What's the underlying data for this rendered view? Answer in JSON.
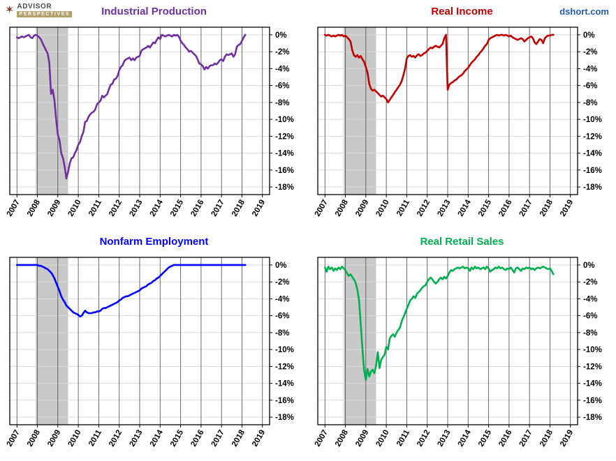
{
  "brand": {
    "line1": "ADVISOR",
    "line2": "PERSPECTIVES",
    "icon": "compass-star-icon"
  },
  "watermark": "dshort.com",
  "style": {
    "recession_fill": "#c9c9c9",
    "vertical_grid_color": "#595959",
    "horizontal_grid_color": "#d9d9d9",
    "border_color": "#000000",
    "watermark_color": "#1f5bb5"
  },
  "chart_data": [
    {
      "type": "line",
      "title": "Industrial Production",
      "color": "#7030A0",
      "x_domain": [
        2006.65,
        2019.35
      ],
      "y_domain": [
        0.9,
        -18.9
      ],
      "x_ticks": [
        2007,
        2008,
        2009,
        2010,
        2011,
        2012,
        2013,
        2014,
        2015,
        2016,
        2017,
        2018,
        2019
      ],
      "x_tick_labels": [
        "2007",
        "2008",
        "2009",
        "2010",
        "2011",
        "2012",
        "2013",
        "2014",
        "2015",
        "2016",
        "2017",
        "2018",
        "2019"
      ],
      "y_ticks": [
        0,
        -2,
        -4,
        -6,
        -8,
        -10,
        -12,
        -14,
        -16,
        -18
      ],
      "y_tick_labels": [
        "0%",
        "-2%",
        "-4%",
        "-6%",
        "-8%",
        "-10%",
        "-12%",
        "-14%",
        "-16%",
        "-18%"
      ],
      "recession": {
        "start": 2007.92,
        "end": 2009.5
      },
      "x_start": 2007.0,
      "x_step_months": 1,
      "values": [
        -0.3,
        -0.4,
        -0.3,
        -0.2,
        -0.3,
        -0.2,
        -0.1,
        0,
        -0.3,
        -0.4,
        -0.1,
        0,
        -0.1,
        -0.3,
        -0.5,
        -1.0,
        -1.4,
        -1.8,
        -2.2,
        -3.3,
        -7.0,
        -6.5,
        -7.8,
        -10.0,
        -11.8,
        -12.5,
        -14.0,
        -14.6,
        -15.6,
        -17.0,
        -16.2,
        -15.2,
        -14.6,
        -14.5,
        -14.0,
        -13.6,
        -13.0,
        -12.7,
        -12.0,
        -11.5,
        -10.3,
        -10.2,
        -9.7,
        -9.4,
        -9.2,
        -9.1,
        -8.8,
        -8.2,
        -8.0,
        -7.8,
        -7.2,
        -7.4,
        -7.2,
        -7.0,
        -6.4,
        -5.9,
        -5.8,
        -5.3,
        -5.2,
        -4.9,
        -4.2,
        -3.8,
        -3.6,
        -3.1,
        -2.9,
        -2.8,
        -2.7,
        -3.0,
        -2.8,
        -3.0,
        -2.7,
        -2.6,
        -2.5,
        -1.9,
        -1.7,
        -1.6,
        -1.5,
        -1.3,
        -1.5,
        -1.2,
        -0.9,
        -1.0,
        -0.6,
        -0.3,
        -0.5,
        0,
        -0.1,
        -0.2,
        -0.1,
        0,
        -0.1,
        -0.2,
        0,
        -0.1,
        0,
        -0.2,
        -0.7,
        -1.0,
        -1.2,
        -1.5,
        -1.7,
        -2.0,
        -1.9,
        -2.1,
        -2.3,
        -2.5,
        -2.9,
        -3.4,
        -3.5,
        -3.7,
        -4.1,
        -3.8,
        -4.0,
        -3.7,
        -3.6,
        -3.6,
        -3.4,
        -3.5,
        -3.3,
        -3.0,
        -2.9,
        -3.1,
        -2.6,
        -2.3,
        -2.4,
        -2.3,
        -2.2,
        -2.6,
        -2.3,
        -1.4,
        -1.2,
        -1.1,
        -0.7,
        -0.3,
        0
      ]
    },
    {
      "type": "line",
      "title": "Real Income",
      "color": "#C00000",
      "x_domain": [
        2006.65,
        2019.35
      ],
      "y_domain": [
        0.9,
        -18.9
      ],
      "x_ticks": [
        2007,
        2008,
        2009,
        2010,
        2011,
        2012,
        2013,
        2014,
        2015,
        2016,
        2017,
        2018,
        2019
      ],
      "x_tick_labels": [
        "2007",
        "2008",
        "2009",
        "2010",
        "2011",
        "2012",
        "2013",
        "2014",
        "2015",
        "2016",
        "2017",
        "2018",
        "2019"
      ],
      "y_ticks": [
        0,
        -2,
        -4,
        -6,
        -8,
        -10,
        -12,
        -14,
        -16,
        -18
      ],
      "y_tick_labels": [
        "0%",
        "-2%",
        "-4%",
        "-6%",
        "-8%",
        "-10%",
        "-12%",
        "-14%",
        "-16%",
        "-18%"
      ],
      "recession": {
        "start": 2007.92,
        "end": 2009.5
      },
      "x_start": 2007.0,
      "x_step_months": 1,
      "values": [
        0,
        -0.1,
        0,
        -0.1,
        -0.2,
        -0.1,
        -0.2,
        -0.1,
        0,
        -0.1,
        0,
        -0.2,
        -0.1,
        -0.3,
        -0.5,
        -0.8,
        -1.8,
        -2.4,
        -2.6,
        -2.4,
        -2.7,
        -2.5,
        -2.9,
        -3.2,
        -3.8,
        -4.5,
        -5.8,
        -6.4,
        -6.6,
        -6.5,
        -6.7,
        -6.9,
        -7.1,
        -7.3,
        -7.2,
        -7.4,
        -7.6,
        -8.0,
        -7.7,
        -7.4,
        -7.1,
        -6.8,
        -6.5,
        -6.2,
        -5.9,
        -5.5,
        -4.8,
        -4.0,
        -2.8,
        -2.5,
        -2.4,
        -2.6,
        -2.5,
        -2.7,
        -2.4,
        -2.3,
        -2.5,
        -2.4,
        -2.2,
        -2.1,
        -1.9,
        -1.7,
        -1.5,
        -1.6,
        -1.4,
        -1.3,
        -1.4,
        -1.5,
        -1.3,
        -1.1,
        -0.4,
        0,
        -6.5,
        -5.9,
        -5.7,
        -5.6,
        -5.4,
        -5.3,
        -5.1,
        -4.9,
        -4.8,
        -4.6,
        -4.3,
        -4.1,
        -3.9,
        -3.6,
        -3.3,
        -3.1,
        -2.9,
        -2.6,
        -2.4,
        -2.1,
        -1.9,
        -1.6,
        -1.3,
        -1.1,
        -0.6,
        -0.4,
        -0.3,
        -0.2,
        -0.1,
        0,
        -0.1,
        0,
        0,
        -0.1,
        0,
        -0.1,
        -0.2,
        -0.1,
        -0.3,
        -0.4,
        -0.5,
        -0.6,
        -0.5,
        -0.4,
        -0.5,
        -0.8,
        -0.6,
        -0.4,
        -0.3,
        -0.2,
        -0.4,
        -0.9,
        -1.1,
        -0.8,
        -0.5,
        -0.6,
        -1.0,
        -0.4,
        -0.2,
        -0.1,
        -0.1,
        0,
        0
      ]
    },
    {
      "type": "line",
      "title": "Nonfarm Employment",
      "color": "#0000FF",
      "x_domain": [
        2006.65,
        2019.35
      ],
      "y_domain": [
        0.9,
        -18.9
      ],
      "x_ticks": [
        2007,
        2008,
        2009,
        2010,
        2011,
        2012,
        2013,
        2014,
        2015,
        2016,
        2017,
        2018,
        2019
      ],
      "x_tick_labels": [
        "2007",
        "2008",
        "2009",
        "2010",
        "2011",
        "2012",
        "2013",
        "2014",
        "2015",
        "2016",
        "2017",
        "2018",
        "2019"
      ],
      "y_ticks": [
        0,
        -2,
        -4,
        -6,
        -8,
        -10,
        -12,
        -14,
        -16,
        -18
      ],
      "y_tick_labels": [
        "0%",
        "-2%",
        "-4%",
        "-6%",
        "-8%",
        "-10%",
        "-12%",
        "-14%",
        "-16%",
        "-18%"
      ],
      "recession": {
        "start": 2007.92,
        "end": 2009.5
      },
      "x_start": 2007.0,
      "x_step_months": 1,
      "values": [
        0,
        0,
        0,
        0,
        0,
        0,
        0,
        0,
        0,
        0,
        0,
        0,
        0,
        -0.1,
        -0.1,
        -0.2,
        -0.3,
        -0.4,
        -0.5,
        -0.7,
        -0.9,
        -1.2,
        -1.6,
        -2.1,
        -2.6,
        -3.1,
        -3.7,
        -4.1,
        -4.4,
        -4.8,
        -5.0,
        -5.2,
        -5.4,
        -5.6,
        -5.7,
        -5.8,
        -5.9,
        -6.1,
        -6.0,
        -5.7,
        -5.4,
        -5.6,
        -5.7,
        -5.7,
        -5.7,
        -5.6,
        -5.6,
        -5.5,
        -5.5,
        -5.4,
        -5.2,
        -5.1,
        -5.1,
        -5.0,
        -4.9,
        -4.8,
        -4.7,
        -4.6,
        -4.5,
        -4.4,
        -4.2,
        -4.1,
        -3.9,
        -3.8,
        -3.7,
        -3.7,
        -3.6,
        -3.5,
        -3.4,
        -3.3,
        -3.2,
        -3.1,
        -3.0,
        -2.8,
        -2.7,
        -2.6,
        -2.5,
        -2.3,
        -2.2,
        -2.1,
        -1.9,
        -1.8,
        -1.6,
        -1.5,
        -1.3,
        -1.1,
        -0.9,
        -0.7,
        -0.5,
        -0.3,
        -0.2,
        -0.1,
        0,
        0,
        0,
        0,
        0,
        0,
        0,
        0,
        0,
        0,
        0,
        0,
        0,
        0,
        0,
        0,
        0,
        0,
        0,
        0,
        0,
        0,
        0,
        0,
        0,
        0,
        0,
        0,
        0,
        0,
        0,
        0,
        0,
        0,
        0,
        0,
        0,
        0,
        0,
        0,
        0,
        0,
        0
      ]
    },
    {
      "type": "line",
      "title": "Real Retail Sales",
      "color": "#00B050",
      "x_domain": [
        2006.65,
        2019.35
      ],
      "y_domain": [
        0.9,
        -18.9
      ],
      "x_ticks": [
        2007,
        2008,
        2009,
        2010,
        2011,
        2012,
        2013,
        2014,
        2015,
        2016,
        2017,
        2018,
        2019
      ],
      "x_tick_labels": [
        "2007",
        "2008",
        "2009",
        "2010",
        "2011",
        "2012",
        "2013",
        "2014",
        "2015",
        "2016",
        "2017",
        "2018",
        "2019"
      ],
      "y_ticks": [
        0,
        -2,
        -4,
        -6,
        -8,
        -10,
        -12,
        -14,
        -16,
        -18
      ],
      "y_tick_labels": [
        "0%",
        "-2%",
        "-4%",
        "-6%",
        "-8%",
        "-10%",
        "-12%",
        "-14%",
        "-16%",
        "-18%"
      ],
      "recession": {
        "start": 2007.92,
        "end": 2009.5
      },
      "x_start": 2007.0,
      "x_step_months": 1,
      "values": [
        -0.3,
        -0.8,
        -0.2,
        -0.5,
        -0.3,
        -0.7,
        -0.4,
        -0.6,
        -0.3,
        -0.5,
        -0.2,
        -0.4,
        -0.6,
        -1.0,
        -1.3,
        -1.1,
        -1.4,
        -1.7,
        -2.1,
        -2.9,
        -4.2,
        -7.0,
        -10.0,
        -12.5,
        -13.6,
        -12.3,
        -13.2,
        -12.6,
        -12.4,
        -12.8,
        -11.9,
        -10.3,
        -12.2,
        -11.2,
        -10.9,
        -10.6,
        -9.7,
        -10.0,
        -8.7,
        -8.4,
        -8.2,
        -8.5,
        -8.0,
        -7.7,
        -7.4,
        -6.7,
        -6.2,
        -5.7,
        -5.2,
        -4.7,
        -4.2,
        -4.0,
        -3.7,
        -3.9,
        -3.4,
        -3.2,
        -3.0,
        -2.7,
        -2.5,
        -2.4,
        -2.0,
        -1.7,
        -1.5,
        -1.7,
        -2.0,
        -2.2,
        -2.0,
        -1.7,
        -1.5,
        -1.7,
        -1.4,
        -1.6,
        -1.3,
        -0.9,
        -0.6,
        -0.7,
        -0.5,
        -0.4,
        -0.3,
        -0.4,
        -0.3,
        -0.2,
        -0.4,
        -0.3,
        -0.4,
        -0.7,
        -0.3,
        -0.5,
        -0.2,
        -0.4,
        -0.3,
        -0.5,
        -0.4,
        -0.3,
        -0.5,
        -0.2,
        -0.4,
        -0.8,
        -0.6,
        -0.5,
        -0.3,
        -0.4,
        -0.2,
        -0.4,
        -0.3,
        -0.5,
        -0.6,
        -0.4,
        -0.5,
        -0.3,
        -0.6,
        -0.9,
        -0.4,
        -0.3,
        -0.5,
        -0.7,
        -0.4,
        -0.5,
        -0.3,
        -0.4,
        -0.3,
        -0.5,
        -0.4,
        -0.6,
        -0.4,
        -0.3,
        -0.4,
        -0.3,
        -0.2,
        -0.3,
        -0.4,
        -0.5,
        -0.4,
        -0.7,
        -1.1
      ]
    }
  ]
}
